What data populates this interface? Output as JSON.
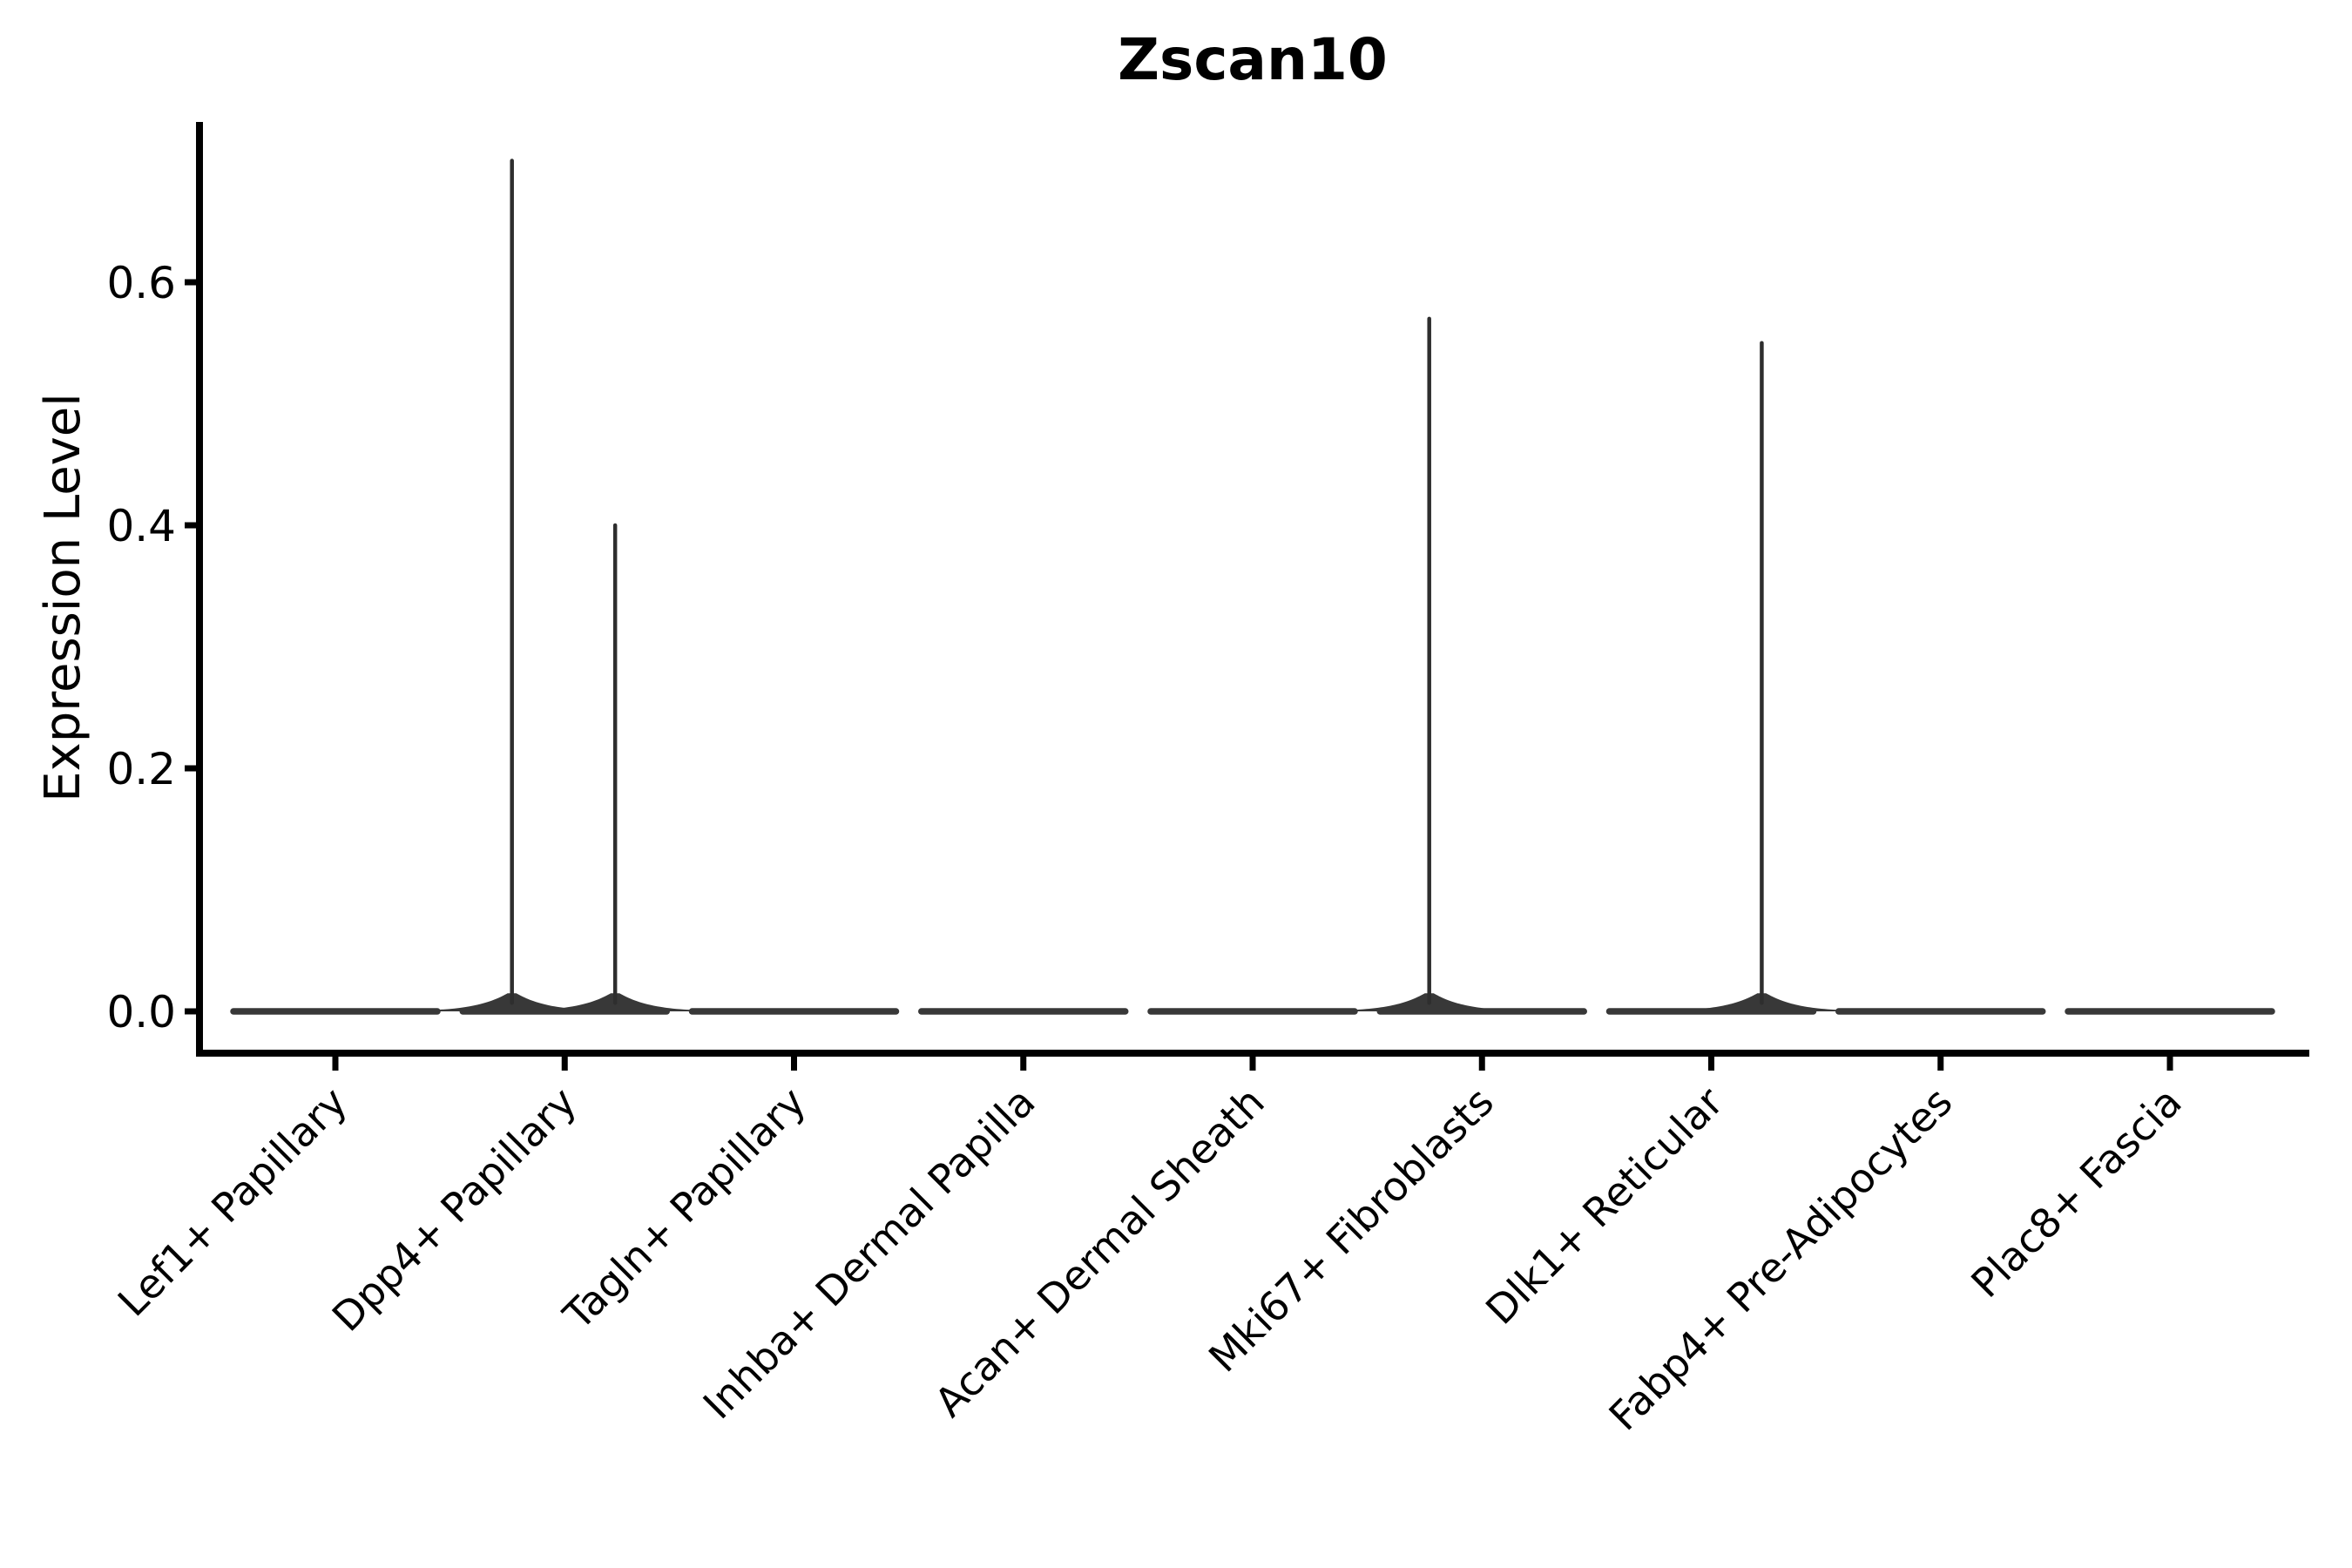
{
  "chart_data": {
    "type": "violin",
    "title": "Zscan10",
    "ylabel": "Expression Level",
    "xlabel": "",
    "yticks": [
      0.0,
      0.2,
      0.4,
      0.6
    ],
    "ylim": [
      0,
      0.73
    ],
    "grid": false,
    "legend": "none",
    "xtick_rotation_deg": 45,
    "categories": [
      "Lef1+ Papillary",
      "Dpp4+ Papillary",
      "Tagln+ Papillary",
      "Inhba+ Dermal Papilla",
      "Acan+ Dermal Sheath",
      "Mki67+ Fibroblasts",
      "Dlk1+ Reticular",
      "Fabp4+ Pre-Adipocytes",
      "Plac8+ Fascia"
    ],
    "violins": [
      {
        "category": "Lef1+ Papillary",
        "baseline_value": 0.0,
        "spikes": []
      },
      {
        "category": "Dpp4+ Papillary",
        "baseline_value": 0.0,
        "spikes": [
          {
            "side": "left",
            "offset_frac": -0.23,
            "max": 0.7
          },
          {
            "side": "right",
            "offset_frac": 0.22,
            "max": 0.4
          }
        ]
      },
      {
        "category": "Tagln+ Papillary",
        "baseline_value": 0.0,
        "spikes": []
      },
      {
        "category": "Inhba+ Dermal Papilla",
        "baseline_value": 0.0,
        "spikes": []
      },
      {
        "category": "Acan+ Dermal Sheath",
        "baseline_value": 0.0,
        "spikes": []
      },
      {
        "category": "Mki67+ Fibroblasts",
        "baseline_value": 0.0,
        "spikes": [
          {
            "side": "left",
            "offset_frac": -0.23,
            "max": 0.57
          }
        ]
      },
      {
        "category": "Dlk1+ Reticular",
        "baseline_value": 0.0,
        "spikes": [
          {
            "side": "right",
            "offset_frac": 0.22,
            "max": 0.55
          }
        ]
      },
      {
        "category": "Fabp4+ Pre-Adipocytes",
        "baseline_value": 0.0,
        "spikes": []
      },
      {
        "category": "Plac8+ Fascia",
        "baseline_value": 0.0,
        "spikes": []
      }
    ],
    "colors": {
      "violin": "#383838",
      "spike": "#2e2e2e",
      "axis": "#000000",
      "text": "#000000",
      "background": "#ffffff"
    }
  }
}
